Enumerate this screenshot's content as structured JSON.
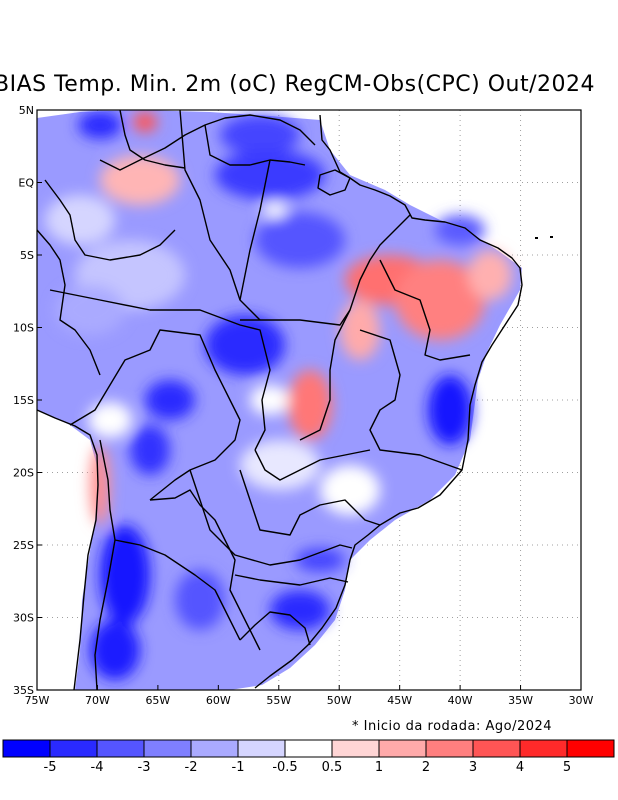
{
  "title": "BIAS Temp. Min. 2m (oC) RegCM-Obs(CPC) Out/2024",
  "note": "* Inicio da rodada: Ago/2024",
  "map": {
    "lon_range": [
      -75,
      -30
    ],
    "lat_range": [
      -35,
      5
    ],
    "lon_ticks": [
      "75W",
      "70W",
      "65W",
      "60W",
      "55W",
      "50W",
      "45W",
      "40W",
      "35W",
      "30W"
    ],
    "lat_ticks": [
      "5N",
      "EQ",
      "5S",
      "10S",
      "15S",
      "20S",
      "25S",
      "30S",
      "35S"
    ]
  },
  "colorbar": {
    "colors": [
      "#0000ff",
      "#2a2aff",
      "#5555ff",
      "#7f7fff",
      "#aaaaff",
      "#d5d5ff",
      "#ffffff",
      "#ffd5d5",
      "#ffaaaa",
      "#ff7f7f",
      "#ff5555",
      "#ff2a2a",
      "#ff0000"
    ],
    "labels": [
      "-5",
      "-4",
      "-3",
      "-2",
      "-1",
      "-0.5",
      "0.5",
      "1",
      "2",
      "3",
      "4",
      "5"
    ]
  }
}
